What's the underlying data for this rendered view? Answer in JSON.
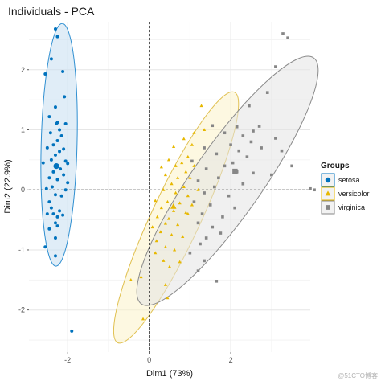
{
  "chart_data": {
    "type": "scatter",
    "title": "Individuals - PCA",
    "xlabel": "Dim1 (73%)",
    "ylabel": "Dim2 (22.9%)",
    "xlim": [
      -2.95,
      3.95
    ],
    "ylim": [
      -2.7,
      2.8
    ],
    "xticks": [
      -2,
      0,
      2
    ],
    "yticks": [
      -2,
      -1,
      0,
      1,
      2
    ],
    "grid": true,
    "reference_lines": {
      "x": 0,
      "y": 0
    },
    "legend": {
      "title": "Groups",
      "placement": "right"
    },
    "series": [
      {
        "name": "setosa",
        "color": "#0072bd",
        "marker": "circle",
        "ellipse": {
          "cx": -2.21,
          "cy": 0.75,
          "rx": 0.44,
          "ry": 2.02,
          "angle": 1.5,
          "fill": "#c6dff0",
          "stroke": "#2f8fd1"
        },
        "points": [
          [
            -2.3,
            2.68
          ],
          [
            -2.25,
            2.55
          ],
          [
            -2.4,
            2.18
          ],
          [
            -2.12,
            1.97
          ],
          [
            -2.55,
            1.93
          ],
          [
            -2.08,
            1.55
          ],
          [
            -2.3,
            1.38
          ],
          [
            -2.45,
            1.22
          ],
          [
            -2.05,
            1.1
          ],
          [
            -2.28,
            1.1
          ],
          [
            -2.25,
            1.12
          ],
          [
            -2.2,
            1.0
          ],
          [
            -2.42,
            0.95
          ],
          [
            -2.15,
            0.9
          ],
          [
            -2.25,
            0.82
          ],
          [
            -2.35,
            0.75
          ],
          [
            -2.5,
            0.7
          ],
          [
            -2.1,
            0.68
          ],
          [
            -2.2,
            0.64
          ],
          [
            -2.3,
            0.58
          ],
          [
            -2.4,
            0.5
          ],
          [
            -2.05,
            0.48
          ],
          [
            -2.6,
            0.45
          ],
          [
            -2.0,
            0.44
          ],
          [
            -2.28,
            0.4
          ],
          [
            -2.18,
            0.35
          ],
          [
            -2.35,
            0.3
          ],
          [
            -2.45,
            0.2
          ],
          [
            -2.1,
            0.25
          ],
          [
            -2.25,
            0.17
          ],
          [
            -2.0,
            0.12
          ],
          [
            -2.38,
            0.05
          ],
          [
            -2.52,
            0.02
          ],
          [
            -2.05,
            0.0
          ],
          [
            -2.3,
            -0.08
          ],
          [
            -2.15,
            -0.1
          ],
          [
            -2.45,
            -0.2
          ],
          [
            -2.4,
            -0.3
          ],
          [
            -2.2,
            -0.35
          ],
          [
            -2.35,
            -0.4
          ],
          [
            -2.12,
            -0.42
          ],
          [
            -2.25,
            -0.45
          ],
          [
            -2.5,
            -0.4
          ],
          [
            -2.3,
            -0.55
          ],
          [
            -2.25,
            -0.6
          ],
          [
            -2.45,
            -0.65
          ],
          [
            -2.3,
            -0.8
          ],
          [
            -2.55,
            -0.95
          ],
          [
            -2.3,
            -1.1
          ],
          [
            -1.9,
            -2.35
          ]
        ]
      },
      {
        "name": "versicolor",
        "color": "#e7b800",
        "marker": "triangle",
        "ellipse": {
          "cx": 0.66,
          "cy": -0.46,
          "rx": 0.6,
          "ry": 2.3,
          "angle": 25,
          "fill": "#fbf3c9",
          "stroke": "#e0c050"
        },
        "points": [
          [
            1.28,
            1.4
          ],
          [
            1.35,
            1.0
          ],
          [
            1.1,
            0.95
          ],
          [
            0.6,
            0.72
          ],
          [
            0.85,
            0.85
          ],
          [
            1.05,
            0.75
          ],
          [
            0.95,
            0.55
          ],
          [
            0.48,
            0.5
          ],
          [
            0.8,
            0.45
          ],
          [
            0.65,
            0.4
          ],
          [
            0.3,
            0.38
          ],
          [
            1.1,
            0.4
          ],
          [
            0.9,
            0.3
          ],
          [
            0.4,
            0.25
          ],
          [
            0.7,
            0.2
          ],
          [
            1.0,
            0.2
          ],
          [
            0.55,
            0.1
          ],
          [
            0.85,
            0.05
          ],
          [
            1.2,
            0.0
          ],
          [
            0.35,
            0.0
          ],
          [
            0.65,
            -0.05
          ],
          [
            0.95,
            -0.1
          ],
          [
            0.15,
            -0.18
          ],
          [
            0.45,
            -0.2
          ],
          [
            0.75,
            -0.22
          ],
          [
            1.05,
            -0.25
          ],
          [
            0.3,
            -0.3
          ],
          [
            0.6,
            -0.35
          ],
          [
            0.9,
            -0.38
          ],
          [
            0.2,
            -0.45
          ],
          [
            0.48,
            -0.48
          ],
          [
            0.95,
            -0.4
          ],
          [
            0.4,
            -0.56
          ],
          [
            0.7,
            -0.58
          ],
          [
            0.08,
            -0.62
          ],
          [
            0.28,
            -0.7
          ],
          [
            0.55,
            -0.75
          ],
          [
            0.82,
            -0.78
          ],
          [
            0.18,
            -0.85
          ],
          [
            0.4,
            -0.95
          ],
          [
            0.62,
            -1.0
          ],
          [
            0.15,
            -1.05
          ],
          [
            0.35,
            -1.18
          ],
          [
            0.75,
            -1.2
          ],
          [
            0.5,
            -1.28
          ],
          [
            -0.2,
            -1.45
          ],
          [
            0.4,
            -1.58
          ],
          [
            -0.45,
            -1.5
          ],
          [
            0.45,
            -1.8
          ],
          [
            -0.15,
            -2.15
          ]
        ]
      },
      {
        "name": "virginica",
        "color": "#868686",
        "marker": "square",
        "ellipse": {
          "cx": 1.92,
          "cy": 0.15,
          "rx": 0.85,
          "ry": 2.5,
          "angle": 35,
          "fill": "#e4e4e4",
          "stroke": "#8a8a8a"
        },
        "points": [
          [
            3.28,
            2.6
          ],
          [
            3.4,
            2.53
          ],
          [
            3.1,
            2.05
          ],
          [
            2.9,
            1.62
          ],
          [
            2.45,
            1.4
          ],
          [
            1.55,
            1.07
          ],
          [
            2.15,
            1.05
          ],
          [
            2.7,
            1.06
          ],
          [
            2.55,
            0.98
          ],
          [
            1.85,
            0.95
          ],
          [
            2.3,
            0.9
          ],
          [
            3.1,
            0.86
          ],
          [
            2.5,
            0.8
          ],
          [
            2.0,
            0.75
          ],
          [
            1.35,
            0.7
          ],
          [
            2.2,
            0.65
          ],
          [
            2.75,
            0.7
          ],
          [
            3.25,
            0.65
          ],
          [
            1.65,
            0.6
          ],
          [
            2.4,
            0.55
          ],
          [
            2.05,
            0.45
          ],
          [
            1.85,
            0.4
          ],
          [
            1.4,
            0.35
          ],
          [
            2.15,
            0.3
          ],
          [
            2.55,
            0.28
          ],
          [
            3.0,
            0.25
          ],
          [
            3.5,
            0.4
          ],
          [
            1.7,
            0.2
          ],
          [
            1.2,
            0.15
          ],
          [
            2.3,
            0.1
          ],
          [
            1.6,
            0.05
          ],
          [
            3.95,
            0.02
          ],
          [
            4.05,
            0.0
          ],
          [
            1.35,
            -0.05
          ],
          [
            1.95,
            -0.1
          ],
          [
            1.1,
            -0.2
          ],
          [
            1.5,
            -0.25
          ],
          [
            2.1,
            -0.3
          ],
          [
            1.3,
            -0.4
          ],
          [
            1.8,
            -0.45
          ],
          [
            1.2,
            -0.55
          ],
          [
            1.55,
            -0.62
          ],
          [
            1.75,
            -0.72
          ],
          [
            1.4,
            -0.8
          ],
          [
            1.25,
            -0.9
          ],
          [
            1.0,
            -1.05
          ],
          [
            1.35,
            -1.18
          ],
          [
            1.2,
            -1.35
          ],
          [
            1.65,
            -1.52
          ],
          [
            1.05,
            0.48
          ]
        ]
      }
    ]
  },
  "watermark": "@51CTO博客"
}
